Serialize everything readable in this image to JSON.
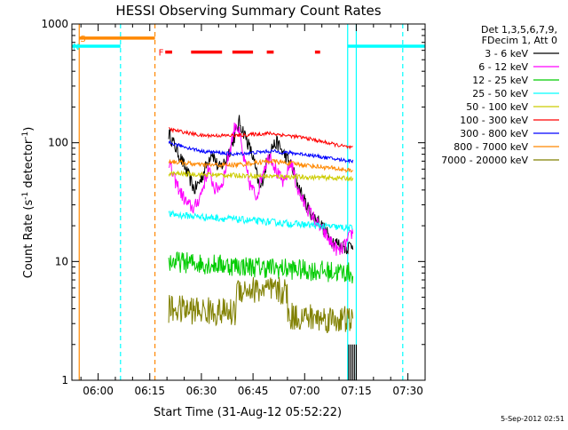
{
  "chart_data": {
    "type": "line",
    "title": "HESSI Observing Summary Count Rates",
    "xlabel": "Start Time (31-Aug-12 05:52:22)",
    "ylabel_main": "Count Rate (s",
    "ylabel_sup1": "-1",
    "ylabel_mid": " detector",
    "ylabel_sup2": "-1",
    "ylabel_end": ")",
    "footer": "5-Sep-2012 02:51",
    "y_scale": "log",
    "ylim": [
      1,
      1000
    ],
    "xlim_minutes": [
      -7.63,
      95
    ],
    "xticks": [
      {
        "label": "06:00",
        "min": 0
      },
      {
        "label": "06:15",
        "min": 15
      },
      {
        "label": "06:30",
        "min": 30
      },
      {
        "label": "06:45",
        "min": 45
      },
      {
        "label": "07:00",
        "min": 60
      },
      {
        "label": "07:15",
        "min": 75
      },
      {
        "label": "07:30",
        "min": 90
      }
    ],
    "yticks": [
      {
        "label": "1",
        "value": 1
      },
      {
        "label": "10",
        "value": 10
      },
      {
        "label": "100",
        "value": 100
      },
      {
        "label": "1000",
        "value": 1000
      }
    ],
    "legend_header": [
      "Det 1,3,5,6,7,9,",
      "FDecim 1, Att 0"
    ],
    "data_window_minutes": [
      20.5,
      74
    ],
    "series": [
      {
        "name": "3 - 6 keV",
        "color": "#000000",
        "x": [
          20.5,
          23,
          26,
          28,
          30,
          33,
          35,
          37,
          39,
          41,
          43,
          45,
          47,
          48.5,
          50,
          52,
          54,
          56,
          58,
          60,
          62,
          64,
          66,
          68,
          70,
          72,
          74
        ],
        "y": [
          120,
          85,
          55,
          40,
          50,
          85,
          60,
          70,
          100,
          150,
          110,
          75,
          40,
          60,
          90,
          100,
          80,
          65,
          45,
          32,
          25,
          22,
          18,
          15,
          14,
          13,
          14
        ]
      },
      {
        "name": "6 - 12 keV",
        "color": "#ff00ff",
        "x": [
          20.5,
          22,
          24,
          26,
          28,
          30,
          32,
          34,
          36,
          38,
          40,
          41,
          42,
          44,
          46,
          48,
          50,
          52,
          54,
          56,
          58,
          60,
          62,
          64,
          66,
          68,
          70,
          72,
          74
        ],
        "y": [
          70,
          50,
          38,
          30,
          28,
          38,
          60,
          40,
          45,
          80,
          150,
          120,
          80,
          45,
          35,
          60,
          80,
          55,
          45,
          70,
          40,
          30,
          25,
          20,
          17,
          14,
          12,
          14,
          18
        ]
      },
      {
        "name": "12 - 25 keV",
        "color": "#00cc00",
        "x": [
          20.5,
          74
        ],
        "y": [
          10,
          8
        ]
      },
      {
        "name": "25 - 50 keV",
        "color": "#00ffff",
        "x": [
          20.5,
          74
        ],
        "y": [
          25,
          19
        ]
      },
      {
        "name": "50 - 100 keV",
        "color": "#cccc00",
        "x": [
          20.5,
          74
        ],
        "y": [
          55,
          50
        ]
      },
      {
        "name": "100 - 300 keV",
        "color": "#ff0000",
        "x": [
          20.5,
          30,
          40,
          50,
          60,
          70,
          74
        ],
        "y": [
          130,
          115,
          115,
          120,
          110,
          95,
          90
        ]
      },
      {
        "name": "300 - 800 keV",
        "color": "#0000ff",
        "x": [
          20.5,
          30,
          40,
          50,
          60,
          70,
          74
        ],
        "y": [
          100,
          85,
          80,
          85,
          80,
          72,
          70
        ]
      },
      {
        "name": "800 - 7000 keV",
        "color": "#ff8800",
        "x": [
          20.5,
          30,
          40,
          50,
          60,
          70,
          74
        ],
        "y": [
          70,
          65,
          65,
          70,
          65,
          60,
          58
        ]
      },
      {
        "name": "7000 - 20000 keV",
        "color": "#808000",
        "x": [
          20.5,
          74
        ],
        "y": [
          4,
          3.2
        ]
      }
    ],
    "flags": [
      {
        "label": "S",
        "color": "#ff8800",
        "x_start": -5.5,
        "x_end": 16.5,
        "y": 760
      },
      {
        "label": "N",
        "color": "#00ffff",
        "x_start": -7.63,
        "x_end": 6.5,
        "y": 650
      },
      {
        "label": "",
        "color": "#00ffff",
        "x_start": 72.5,
        "x_end": 95,
        "y": 650
      },
      {
        "label": "F",
        "color": "#ff0000",
        "segments": [
          [
            19.5,
            21.5
          ],
          [
            27,
            36
          ],
          [
            39,
            45
          ],
          [
            49,
            51
          ],
          [
            63,
            64.5
          ]
        ],
        "y": 580
      }
    ],
    "vlines": [
      {
        "x": -5.5,
        "color": "#ff8800",
        "style": "solid"
      },
      {
        "x": 6.5,
        "color": "#00ffff",
        "style": "dashed"
      },
      {
        "x": 16.5,
        "color": "#ff8800",
        "style": "dashed"
      },
      {
        "x": 72.5,
        "color": "#00ffff",
        "style": "solid"
      },
      {
        "x": 75,
        "color": "#00ffff",
        "style": "solid"
      },
      {
        "x": 88.5,
        "color": "#00ffff",
        "style": "dashed"
      }
    ],
    "legend_placement": "top-right",
    "grid": false
  }
}
